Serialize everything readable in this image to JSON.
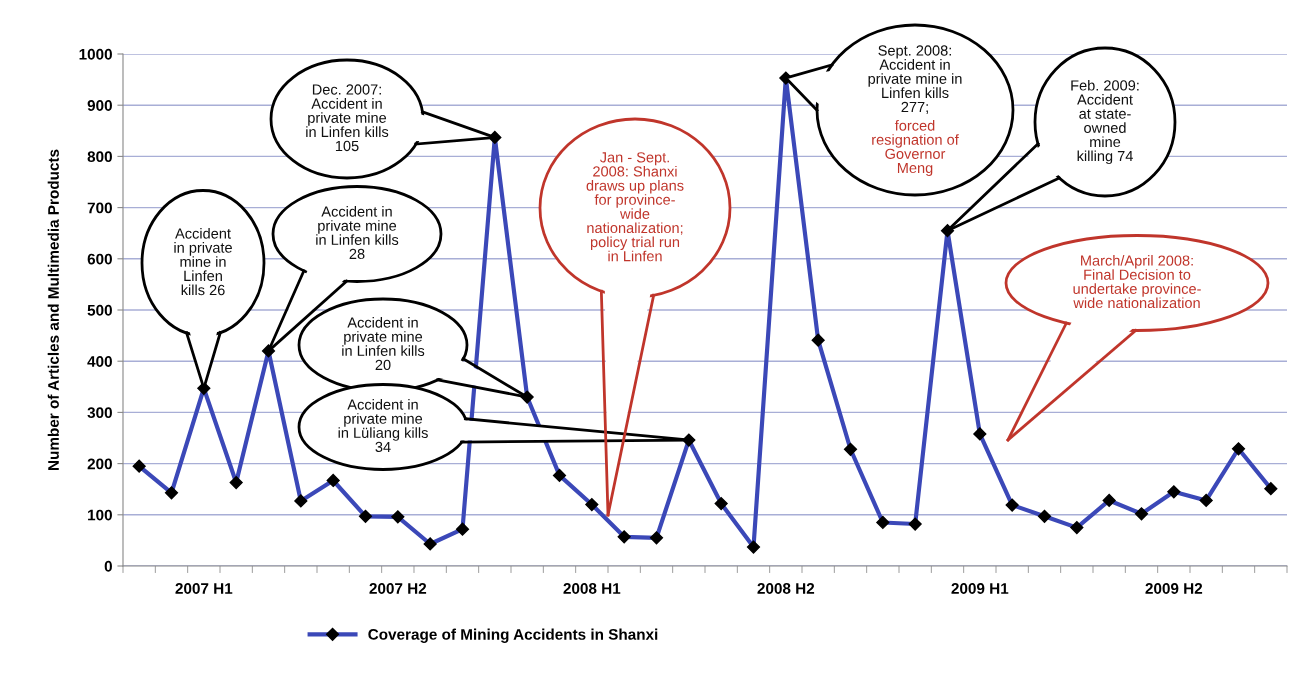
{
  "chart_data": {
    "type": "line",
    "ylabel": "Number of Articles and Multimedia Products",
    "categories": [
      null,
      null,
      "2007 H1",
      null,
      null,
      null,
      null,
      null,
      "2007 H2",
      null,
      null,
      null,
      null,
      null,
      "2008 H1",
      null,
      null,
      null,
      null,
      null,
      "2008 H2",
      null,
      null,
      null,
      null,
      null,
      "2009 H1",
      null,
      null,
      null,
      null,
      null,
      "2009 H2",
      null,
      null,
      null
    ],
    "series": [
      {
        "name": "Coverage of Mining Accidents in Shanxi",
        "color": "#3b48b8",
        "values": [
          195,
          143,
          347,
          163,
          420,
          127,
          167,
          97,
          96,
          43,
          72,
          837,
          330,
          177,
          120,
          57,
          55,
          246,
          122,
          37,
          953,
          441,
          228,
          85,
          82,
          655,
          258,
          119,
          97,
          75,
          128,
          102,
          145,
          128,
          229,
          151
        ]
      }
    ],
    "ylim": [
      0,
      1000
    ],
    "yticks": [
      0,
      100,
      200,
      300,
      400,
      500,
      600,
      700,
      800,
      900,
      1000
    ],
    "grid": "y",
    "legend": "bottom",
    "marker": "diamond",
    "line_style": "solid",
    "annotations": [
      "Accident\nin private\nmine in\nLinfen\nkills 26",
      "Accident in\nprivate mine\nin Linfen kills\n28",
      "Dec. 2007:\nAccident in\nprivate mine\nin Linfen kills\n105",
      "Accident in\nprivate mine\nin Linfen kills\n20",
      "Accident in\nprivate mine\nin Lüliang kills\n34",
      "Jan - Sept.\n2008: Shanxi\ndraws up plans\nfor province-\nwide\nnationalization;\npolicy trial run\nin Linfen",
      "Sept. 2008:\nAccident in\nprivate mine in\nLinfen kills\n277;",
      "forced\nresignation of\nGovernor\nMeng",
      "Feb. 2009:\nAccident\nat state-\nowned\nmine\nkilling 74",
      "March/April 2008:\nFinal Decision to\nundertake province-\nwide nationalization"
    ]
  }
}
